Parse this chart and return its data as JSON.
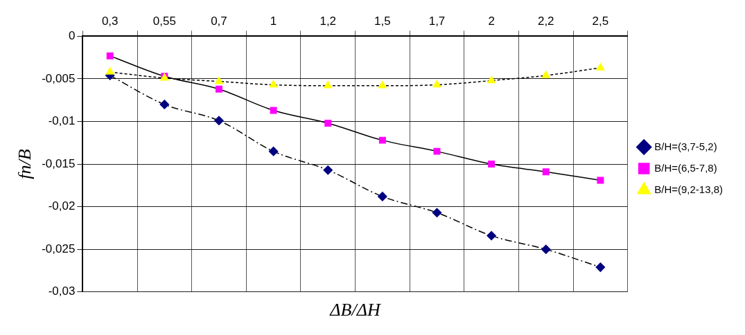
{
  "chart_data": {
    "type": "line",
    "xlabel": "ΔB/ΔH",
    "ylabel": "fn/B",
    "categories": [
      "0,3",
      "0,55",
      "0,7",
      "1",
      "1,2",
      "1,5",
      "1,7",
      "2",
      "2,2",
      "2,5"
    ],
    "series": [
      {
        "name": "B/H=(3,7-5,2)",
        "color": "#000080",
        "marker": "diamond",
        "line_style": "dashed",
        "values": [
          -0.0046,
          -0.008,
          -0.0099,
          -0.0135,
          -0.0157,
          -0.0188,
          -0.0207,
          -0.0234,
          -0.025,
          -0.0271
        ]
      },
      {
        "name": "B/H=(6,5-7,8)",
        "color": "#ff00ff",
        "marker": "square",
        "line_style": "solid",
        "values": [
          -0.0023,
          -0.0047,
          -0.0062,
          -0.0087,
          -0.0102,
          -0.0122,
          -0.0135,
          -0.015,
          -0.0159,
          -0.0169
        ]
      },
      {
        "name": "B/H=(9,2-13,8)",
        "color": "#ffff00",
        "marker": "triangle",
        "line_style": "dotted",
        "values": [
          -0.0042,
          -0.0049,
          -0.0053,
          -0.0057,
          -0.0058,
          -0.0058,
          -0.0057,
          -0.0052,
          -0.0046,
          -0.0037
        ]
      }
    ],
    "ylim": [
      -0.03,
      0
    ],
    "yticks": [
      {
        "value": 0,
        "label": "0"
      },
      {
        "value": -0.005,
        "label": "-0,005"
      },
      {
        "value": -0.01,
        "label": "-0,01"
      },
      {
        "value": -0.015,
        "label": "-0,015"
      },
      {
        "value": -0.02,
        "label": "-0,02"
      },
      {
        "value": -0.025,
        "label": "-0,025"
      },
      {
        "value": -0.03,
        "label": "-0,03"
      }
    ],
    "grid": true,
    "legend": "right"
  }
}
